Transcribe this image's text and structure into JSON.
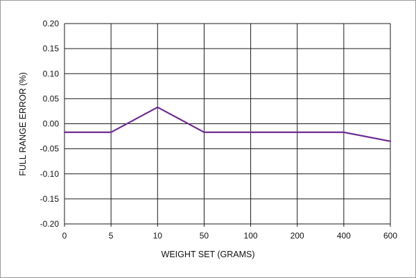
{
  "chart_data": {
    "type": "line",
    "title": "",
    "xlabel": "WEIGHT SET (GRAMS)",
    "ylabel": "FULL RANGE ERROR (%)",
    "categories": [
      "0",
      "5",
      "10",
      "50",
      "100",
      "200",
      "400",
      "600"
    ],
    "series": [
      {
        "values": [
          -0.017,
          -0.017,
          0.033,
          -0.017,
          -0.017,
          -0.017,
          -0.017,
          -0.035
        ]
      }
    ],
    "ylim": [
      -0.2,
      0.2
    ],
    "yticks": [
      "0.20",
      "0.15",
      "0.10",
      "0.05",
      "0.00",
      "-0.05",
      "-0.10",
      "-0.15",
      "-0.20"
    ],
    "grid": true,
    "line_color": "#6b2a8f",
    "grid_color": "#1a1a1a"
  }
}
